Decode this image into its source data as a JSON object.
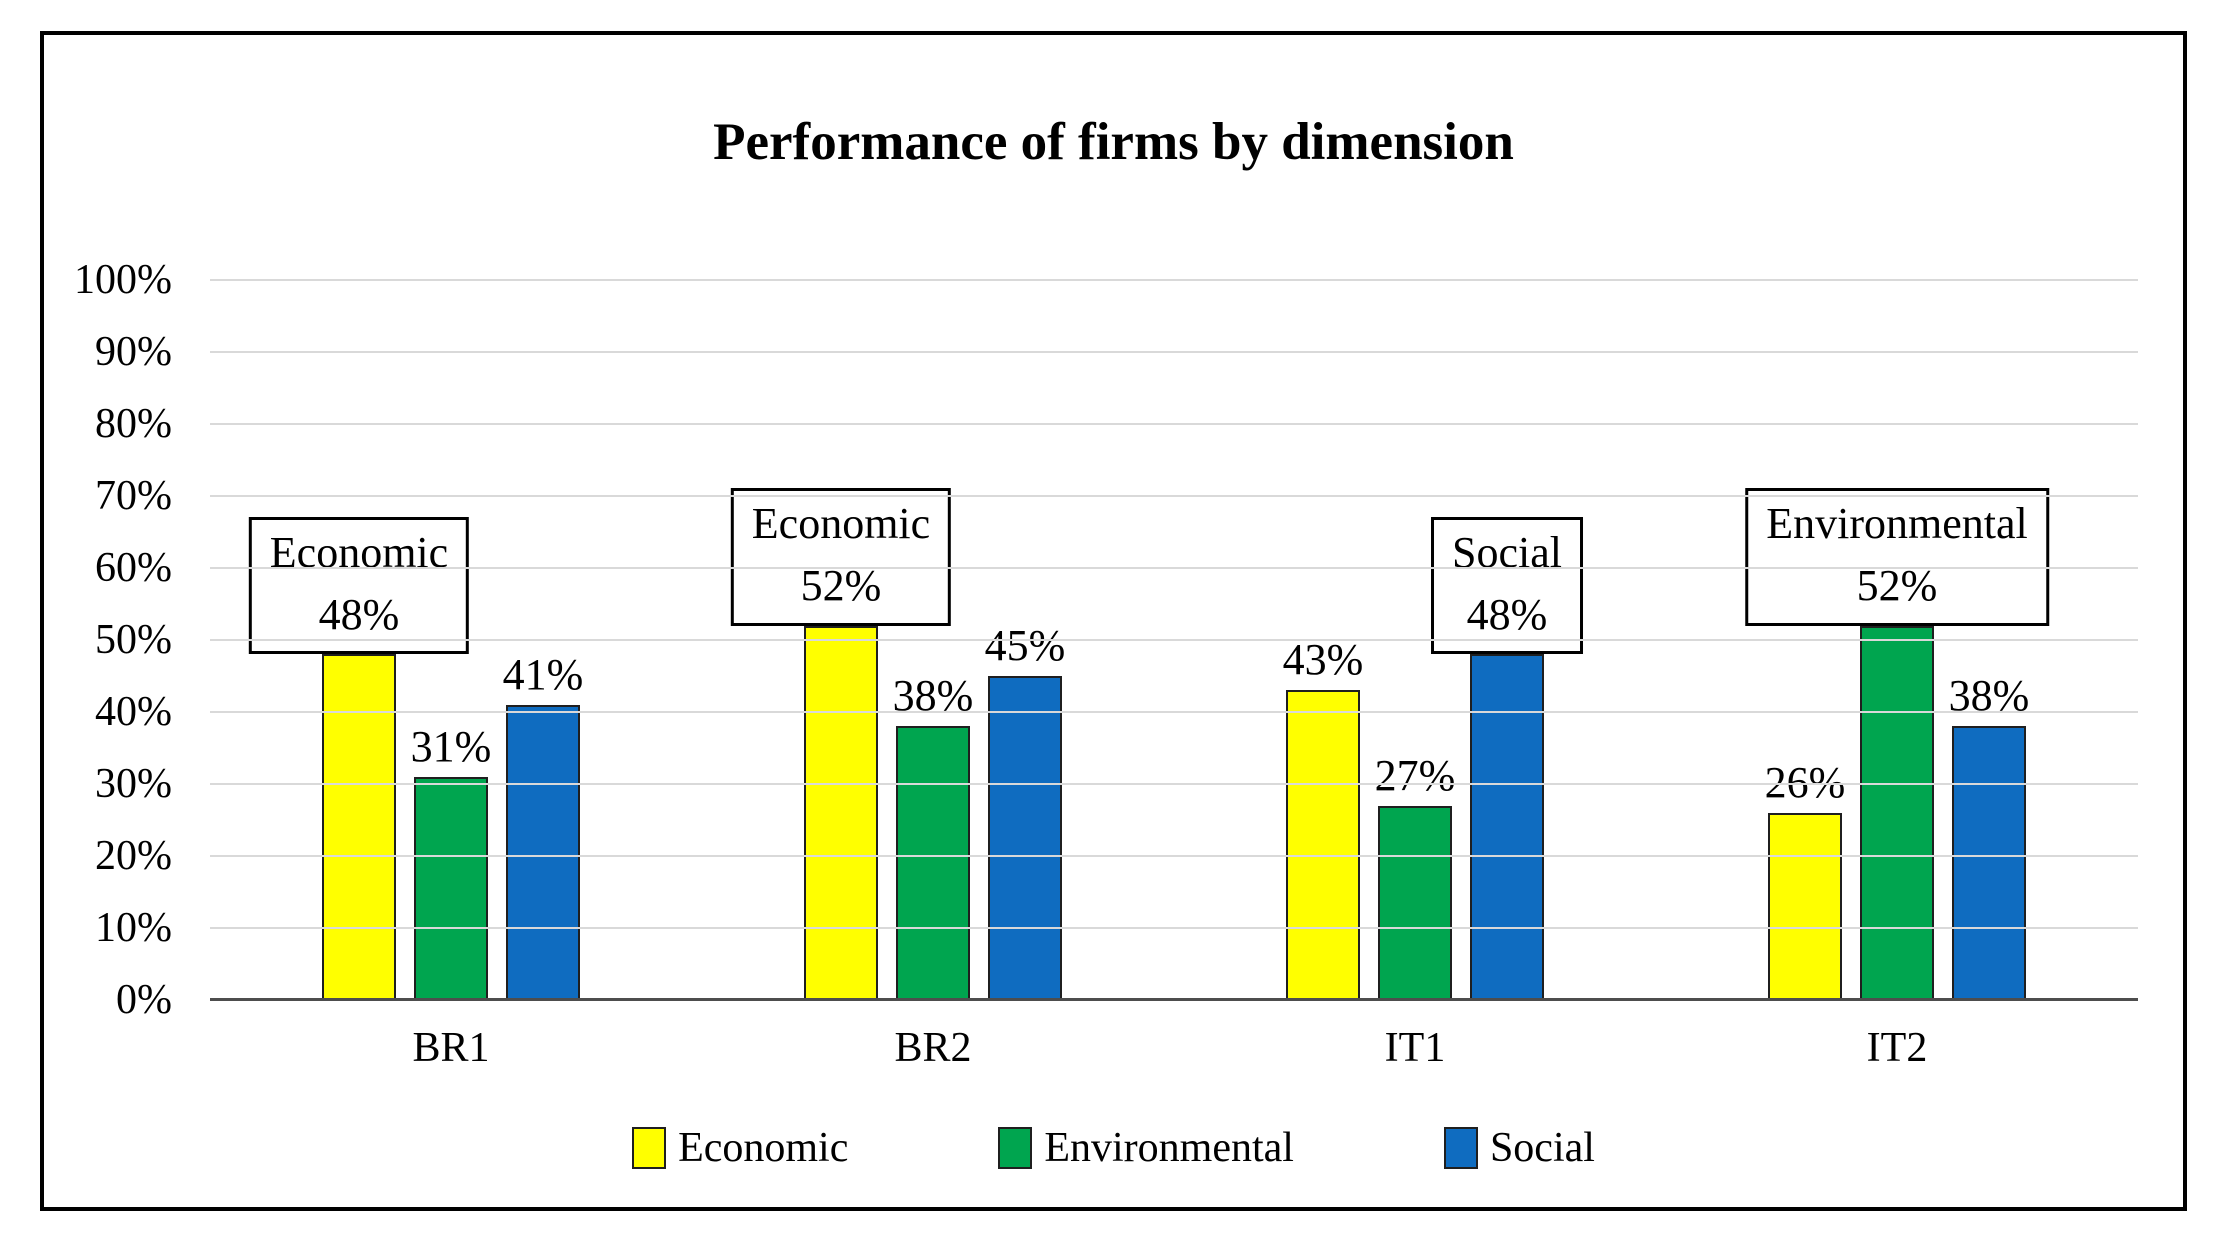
{
  "chart_data": {
    "type": "bar",
    "title": "Performance of firms by dimension",
    "categories": [
      "BR1",
      "BR2",
      "IT1",
      "IT2"
    ],
    "series": [
      {
        "name": "Economic",
        "color": "#FFFF00",
        "values": [
          48,
          52,
          43,
          26
        ]
      },
      {
        "name": "Environmental",
        "color": "#00A54F",
        "values": [
          31,
          38,
          27,
          52
        ]
      },
      {
        "name": "Social",
        "color": "#0F6CC0",
        "values": [
          41,
          45,
          48,
          38
        ]
      }
    ],
    "value_suffix": "%",
    "data_labels": {
      "BR1": [
        "48%",
        "31%",
        "41%"
      ],
      "BR2": [
        "52%",
        "38%",
        "45%"
      ],
      "IT1": [
        "43%",
        "27%",
        "48%"
      ],
      "IT2": [
        "26%",
        "52%",
        "38%"
      ]
    },
    "callouts": [
      {
        "category": "BR1",
        "series": "Economic",
        "line1": "Economic",
        "line2": "48%"
      },
      {
        "category": "BR2",
        "series": "Economic",
        "line1": "Economic",
        "line2": "52%"
      },
      {
        "category": "IT1",
        "series": "Social",
        "line1": "Social",
        "line2": "48%"
      },
      {
        "category": "IT2",
        "series": "Environmental",
        "line1": "Environmental",
        "line2": "52%"
      }
    ],
    "y_axis": {
      "min": 0,
      "max": 100,
      "step": 10,
      "tick_labels": [
        "0%",
        "10%",
        "20%",
        "30%",
        "40%",
        "50%",
        "60%",
        "70%",
        "80%",
        "90%",
        "100%"
      ]
    },
    "legend": [
      {
        "label": "Economic",
        "color": "#FFFF00"
      },
      {
        "label": "Environmental",
        "color": "#00A54F"
      },
      {
        "label": "Social",
        "color": "#0F6CC0"
      }
    ],
    "legend_position": "bottom",
    "grid": true,
    "colors": {
      "bar_border": "#1F1F1F",
      "gridline": "#D9D9D9",
      "axis_line": "#4D4D4D",
      "frame_border": "#000000",
      "background": "#FFFFFF",
      "text": "#000000"
    }
  }
}
